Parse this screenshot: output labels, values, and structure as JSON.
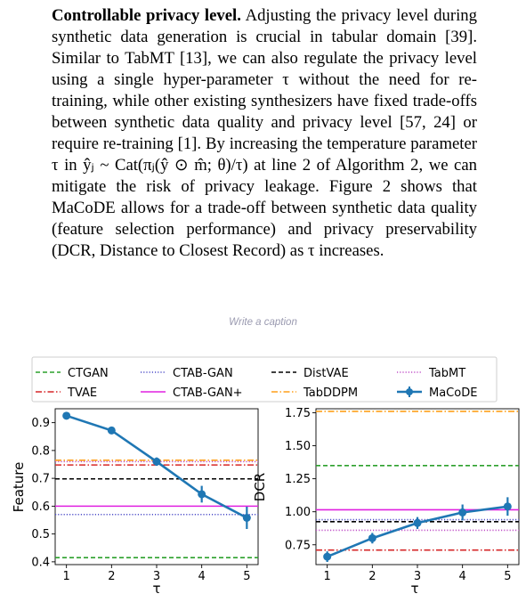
{
  "paragraph": {
    "lead": "Controllable privacy level.",
    "text": "Adjusting the privacy level during synthetic data generation is crucial in tabular domain [39]. Similar to TabMT [13], we can also regulate the privacy level using a single hyper-parameter τ without the need for re-training, while other existing synthesizers have fixed trade-offs between synthetic data quality and privacy level [57, 24] or require re-training [1]. By increasing the temperature parameter τ in ŷⱼ ~ Cat(πⱼ(ŷ ⊙ m̂; θ)/τ) at line 2 of Algorithm 2, we can mitigate the risk of privacy leakage. Figure 2 shows that MaCoDE allows for a trade-off between synthetic data quality (feature selection performance) and privacy preservability (DCR, Distance to Closest Record) as τ increases."
  },
  "caption_placeholder": "Write a caption",
  "legend": [
    {
      "name": "CTGAN",
      "color": "#2ca02c",
      "style": "dashed"
    },
    {
      "name": "CTAB-GAN",
      "color": "#4f4fc8",
      "style": "dotted"
    },
    {
      "name": "DistVAE",
      "color": "#000000",
      "style": "dashed"
    },
    {
      "name": "TabMT",
      "color": "#c050c8",
      "style": "dotted"
    },
    {
      "name": "TVAE",
      "color": "#d62728",
      "style": "dashdot"
    },
    {
      "name": "CTAB-GAN+",
      "color": "#e020e0",
      "style": "solid"
    },
    {
      "name": "TabDDPM",
      "color": "#ff9f1a",
      "style": "dashdot"
    },
    {
      "name": "MaCoDE",
      "color": "#1f77b4",
      "style": "marker"
    }
  ],
  "chart_data": [
    {
      "type": "line",
      "ylabel": "Feature",
      "xlabel": "τ",
      "x": [
        1,
        2,
        3,
        4,
        5
      ],
      "ylim": [
        0.39,
        0.95
      ],
      "yticks": [
        0.4,
        0.5,
        0.6,
        0.7,
        0.8,
        0.9
      ],
      "ytick_labels": [
        "0.4",
        "0.5",
        "0.6",
        "0.7",
        "0.8",
        "0.9"
      ],
      "xtick_labels": [
        "1",
        "2",
        "3",
        "4",
        "5"
      ],
      "series": [
        {
          "name": "MaCoDE",
          "values": [
            0.925,
            0.872,
            0.76,
            0.643,
            0.558
          ],
          "err": [
            0.006,
            0.008,
            0.015,
            0.03,
            0.04
          ]
        }
      ],
      "baselines": [
        {
          "name": "CTGAN",
          "value": 0.415
        },
        {
          "name": "CTAB-GAN",
          "value": 0.57
        },
        {
          "name": "DistVAE",
          "value": 0.698
        },
        {
          "name": "TabMT",
          "value": 0.76
        },
        {
          "name": "TVAE",
          "value": 0.748
        },
        {
          "name": "CTAB-GAN+",
          "value": 0.6
        },
        {
          "name": "TabDDPM",
          "value": 0.765
        }
      ]
    },
    {
      "type": "line",
      "ylabel": "DCR",
      "xlabel": "τ",
      "x": [
        1,
        2,
        3,
        4,
        5
      ],
      "ylim": [
        0.6,
        1.78
      ],
      "yticks": [
        0.75,
        1.0,
        1.25,
        1.5,
        1.75
      ],
      "ytick_labels": [
        "0.75",
        "1.00",
        "1.25",
        "1.50",
        "1.75"
      ],
      "xtick_labels": [
        "1",
        "2",
        "3",
        "4",
        "5"
      ],
      "series": [
        {
          "name": "MaCoDE",
          "values": [
            0.66,
            0.8,
            0.915,
            0.995,
            1.04
          ],
          "err": [
            0.04,
            0.04,
            0.045,
            0.06,
            0.07
          ]
        }
      ],
      "baselines": [
        {
          "name": "CTGAN",
          "value": 1.35
        },
        {
          "name": "CTAB-GAN",
          "value": 0.94
        },
        {
          "name": "DistVAE",
          "value": 0.925
        },
        {
          "name": "TabMT",
          "value": 0.86
        },
        {
          "name": "TVAE",
          "value": 0.71
        },
        {
          "name": "CTAB-GAN+",
          "value": 1.015
        },
        {
          "name": "TabDDPM",
          "value": 1.76
        }
      ]
    }
  ]
}
